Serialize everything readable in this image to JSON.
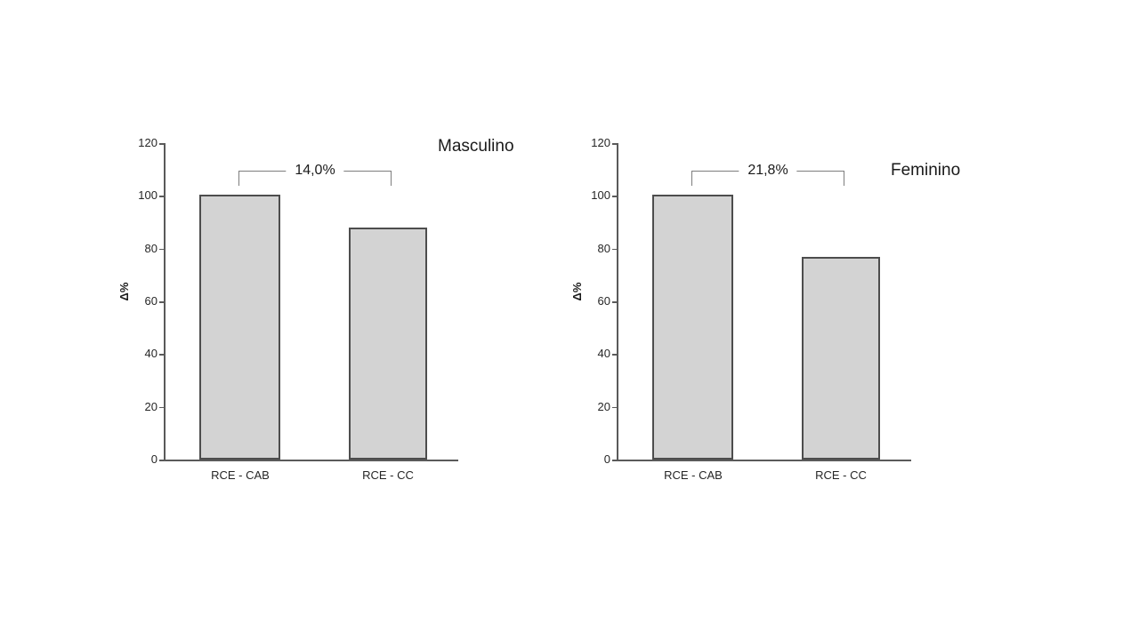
{
  "colors": {
    "background": "#ffffff",
    "bar_fill": "#d3d3d3",
    "bar_border": "#4d4d4d",
    "axis": "#5a5a5a",
    "bracket_line": "#7d7d7d",
    "text": "#1a1a1a"
  },
  "chart_data": [
    {
      "type": "bar",
      "title": "Masculino",
      "ylabel": "Δ%",
      "xlabel": "",
      "categories": [
        "RCE - CAB",
        "RCE - CC"
      ],
      "values": [
        100.5,
        88
      ],
      "ylim": [
        0,
        120
      ],
      "yticks": [
        0,
        20,
        40,
        60,
        80,
        100,
        120
      ],
      "grid": false,
      "legend": "none",
      "annotation": {
        "type": "comparison-bracket",
        "label": "14,0%",
        "between": [
          "RCE - CAB",
          "RCE - CC"
        ]
      }
    },
    {
      "type": "bar",
      "title": "Feminino",
      "ylabel": "Δ%",
      "xlabel": "",
      "categories": [
        "RCE - CAB",
        "RCE - CC"
      ],
      "values": [
        100.5,
        77
      ],
      "ylim": [
        0,
        120
      ],
      "yticks": [
        0,
        20,
        40,
        60,
        80,
        100,
        120
      ],
      "grid": false,
      "legend": "none",
      "annotation": {
        "type": "comparison-bracket",
        "label": "21,8%",
        "between": [
          "RCE - CAB",
          "RCE - CC"
        ]
      }
    }
  ]
}
